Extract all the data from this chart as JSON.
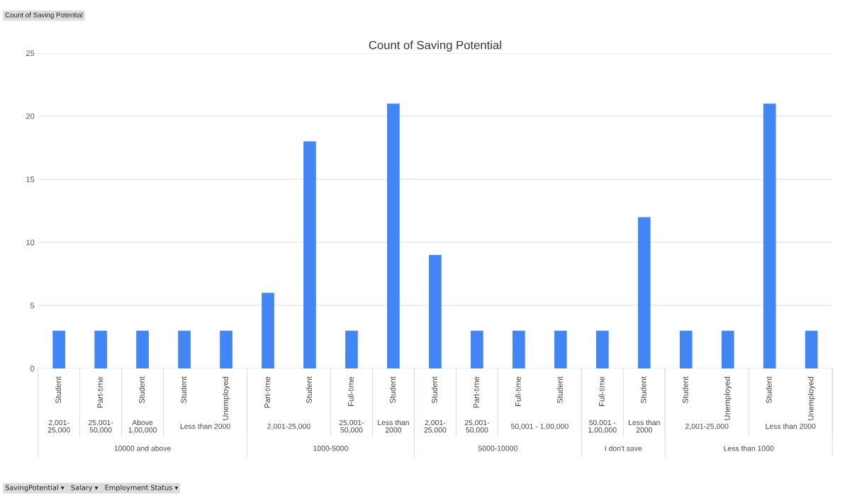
{
  "chart_data": {
    "type": "bar",
    "title": "Count of Saving Potential",
    "categories": [
      "Student",
      "Part-time",
      "Student",
      "Student",
      "Unemployed",
      "Part-time",
      "Student",
      "Full-time",
      "Student",
      "Student",
      "Part-time",
      "Full-time",
      "Student",
      "Full-time",
      "Student",
      "Student",
      "Unemployed",
      "Student",
      "Unemployed"
    ],
    "values": [
      3,
      3,
      3,
      3,
      3,
      6,
      18,
      3,
      21,
      9,
      3,
      3,
      3,
      3,
      12,
      3,
      3,
      21,
      3
    ],
    "color": "#4285f4",
    "ylim": [
      0,
      25
    ],
    "yticks": [
      0,
      5,
      10,
      15,
      20,
      25
    ],
    "grid": "y",
    "legend": false,
    "annotations": [
      "Count of Saving Potential",
      "SavingPotential ▾   Salary ▾   Employment Status ▾",
      "2,001-\n25,000",
      "25,001-\n50,000",
      "Above\n1,00,000",
      "Less than 2000",
      "2,001-25,000",
      "25,001-\n50,000",
      "Less than\n2000",
      "2,001-\n25,000",
      "25,001-\n50,000",
      "50,001 - 1,00,000",
      "50,001 -\n1,00,000",
      "Less than\n2000",
      "2,001-25,000",
      "Less than 2000",
      "10000 and above",
      "1000-5000",
      "5000-10000",
      "I don't save",
      "Less than 1000"
    ]
  }
}
